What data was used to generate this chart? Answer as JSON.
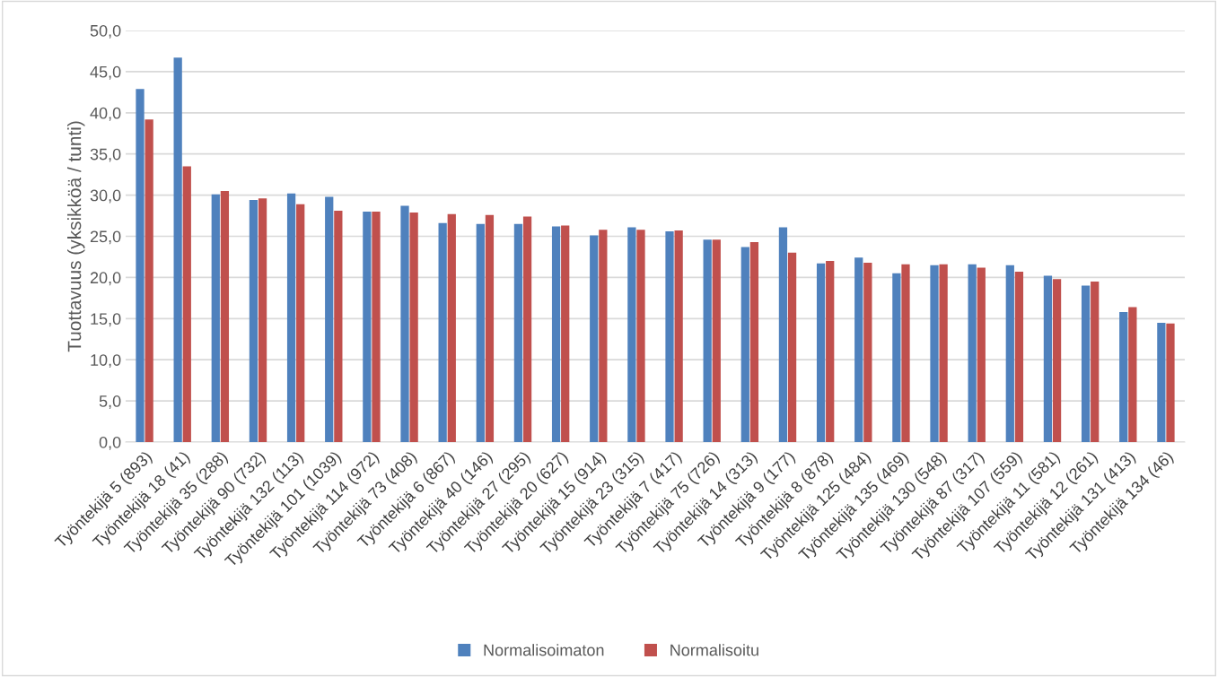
{
  "chart_data": {
    "type": "bar",
    "ylabel": "Tuottavuus (yksikköä / tunti)",
    "categories": [
      "Työntekijä 5 (893)",
      "Työntekijä 18 (41)",
      "Työntekijä 35 (288)",
      "Työntekijä 90 (732)",
      "Työntekijä 132 (113)",
      "Työntekijä 101 (1039)",
      "Työntekijä 114 (972)",
      "Työntekijä 73 (408)",
      "Työntekijä 6 (867)",
      "Työntekijä 40 (146)",
      "Työntekijä 27 (295)",
      "Työntekijä 20 (627)",
      "Työntekijä 15 (914)",
      "Työntekijä 23 (315)",
      "Työntekijä 7 (417)",
      "Työntekijä 75 (726)",
      "Työntekijä 14 (313)",
      "Työntekijä 9 (177)",
      "Työntekijä 8 (878)",
      "Työntekijä 125 (484)",
      "Työntekijä 135 (469)",
      "Työntekijä 130 (548)",
      "Työntekijä 87 (317)",
      "Työntekijä 107 (559)",
      "Työntekijä 11 (581)",
      "Työntekijä 12 (261)",
      "Työntekijä 131 (413)",
      "Työntekijä 134 (46)"
    ],
    "series": [
      {
        "name": "Normalisoimaton",
        "color": "#4f81bd",
        "values": [
          42.9,
          46.7,
          30.1,
          29.4,
          30.2,
          29.8,
          28.0,
          28.7,
          26.6,
          26.5,
          26.5,
          26.2,
          25.1,
          26.1,
          25.6,
          24.6,
          23.7,
          26.1,
          21.7,
          22.4,
          20.5,
          21.5,
          21.6,
          21.5,
          20.2,
          19.0,
          15.8,
          14.5
        ]
      },
      {
        "name": "Normalisoitu",
        "color": "#c0504d",
        "values": [
          39.2,
          33.5,
          30.5,
          29.6,
          28.9,
          28.1,
          28.0,
          27.9,
          27.7,
          27.6,
          27.4,
          26.3,
          25.8,
          25.8,
          25.7,
          24.6,
          24.3,
          23.0,
          22.0,
          21.8,
          21.6,
          21.6,
          21.2,
          20.7,
          19.8,
          19.5,
          16.4,
          14.4
        ]
      }
    ],
    "ylim": [
      0,
      50
    ],
    "yticks": [
      {
        "value": 0,
        "label": "0,0"
      },
      {
        "value": 5,
        "label": "5,0"
      },
      {
        "value": 10,
        "label": "10,0"
      },
      {
        "value": 15,
        "label": "15,0"
      },
      {
        "value": 20,
        "label": "20,0"
      },
      {
        "value": 25,
        "label": "25,0"
      },
      {
        "value": 30,
        "label": "30,0"
      },
      {
        "value": 35,
        "label": "35,0"
      },
      {
        "value": 40,
        "label": "40,0"
      },
      {
        "value": 45,
        "label": "45,0"
      },
      {
        "value": 50,
        "label": "50,0"
      }
    ],
    "grid": "y",
    "legend": "bottom"
  }
}
